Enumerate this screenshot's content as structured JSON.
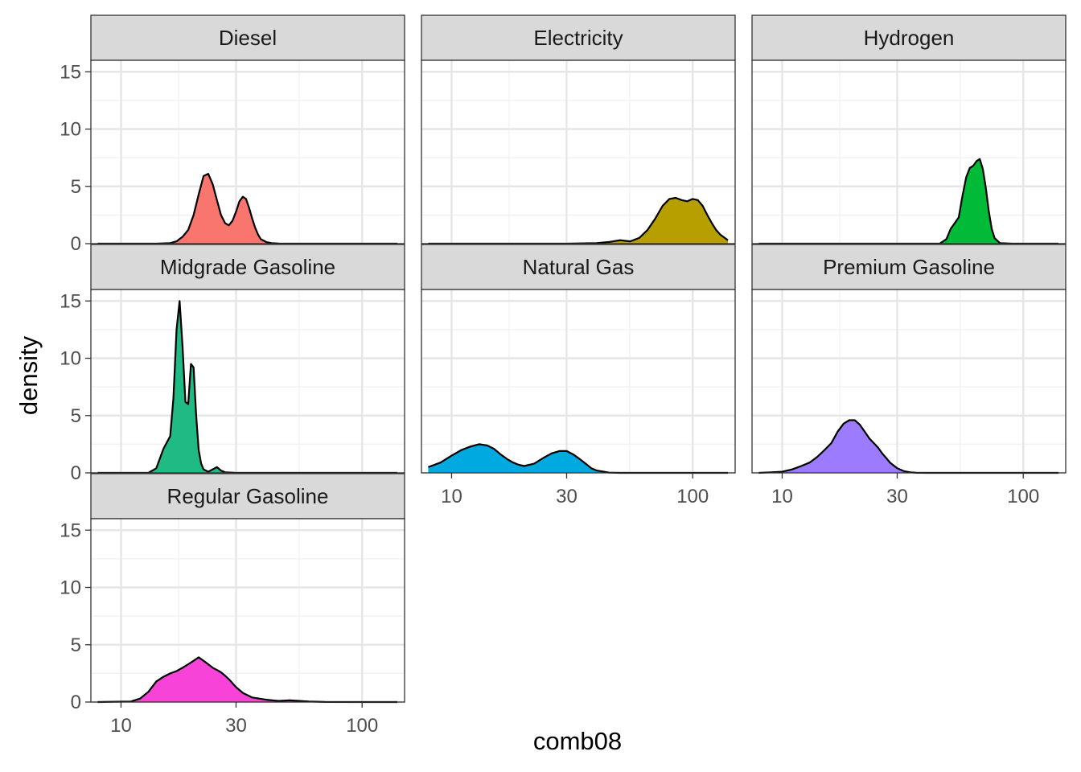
{
  "chart_data": {
    "type": "area",
    "facet_layout": "3 columns x 3 rows, free order left-to-right, top-to-bottom",
    "xlabel": "comb08",
    "ylabel": "density",
    "x_scale": "log10",
    "xlim": [
      7.5,
      150
    ],
    "ylim": [
      0,
      16
    ],
    "x_ticks": [
      10,
      30,
      100
    ],
    "x_tick_labels": [
      "10",
      "30",
      "100"
    ],
    "y_ticks": [
      0,
      5,
      10,
      15
    ],
    "y_tick_labels": [
      "0",
      "5",
      "10",
      "15"
    ],
    "grid": true,
    "legend": "none",
    "series": [
      {
        "name": "Diesel",
        "color": "#F8766D",
        "x": [
          8,
          14,
          16,
          17,
          18,
          19,
          20,
          21,
          22,
          23,
          24,
          25,
          26,
          27,
          28,
          29,
          30,
          31,
          32,
          33,
          34,
          35,
          36,
          37,
          38,
          40,
          42,
          45,
          50,
          100,
          140
        ],
        "y": [
          0,
          0,
          0.05,
          0.2,
          0.6,
          1.2,
          2.5,
          4.3,
          5.9,
          6.1,
          5.2,
          3.8,
          2.5,
          1.8,
          1.6,
          2.0,
          2.8,
          3.7,
          4.1,
          3.9,
          3.1,
          2.2,
          1.4,
          0.8,
          0.4,
          0.15,
          0.05,
          0.01,
          0,
          0,
          0
        ]
      },
      {
        "name": "Electricity",
        "color": "#B79F00",
        "x": [
          8,
          30,
          40,
          45,
          50,
          55,
          60,
          65,
          70,
          75,
          80,
          85,
          90,
          95,
          100,
          105,
          110,
          115,
          120,
          125,
          130,
          140
        ],
        "y": [
          0,
          0,
          0.05,
          0.15,
          0.3,
          0.2,
          0.5,
          1.2,
          2.2,
          3.3,
          3.9,
          4.0,
          3.8,
          3.7,
          3.9,
          3.8,
          3.3,
          2.5,
          1.8,
          1.2,
          0.8,
          0.3
        ]
      },
      {
        "name": "Hydrogen",
        "color": "#00BA38",
        "x": [
          8,
          45,
          48,
          50,
          52,
          54,
          56,
          58,
          60,
          62,
          64,
          66,
          68,
          70,
          72,
          74,
          76,
          80,
          90,
          140
        ],
        "y": [
          0,
          0,
          0.4,
          1.3,
          1.8,
          2.3,
          4.2,
          5.8,
          6.6,
          6.8,
          7.2,
          7.4,
          6.5,
          4.8,
          2.8,
          1.3,
          0.5,
          0.05,
          0,
          0
        ]
      },
      {
        "name": "Midgrade Gasoline",
        "color": "#20BA85",
        "x": [
          8,
          13,
          14,
          15,
          16,
          16.5,
          17,
          17.5,
          18,
          18.5,
          19,
          19.5,
          20,
          20.5,
          21,
          21.5,
          22,
          23,
          24,
          25,
          26,
          27,
          30,
          140
        ],
        "y": [
          0,
          0,
          0.4,
          2.1,
          3.2,
          6.5,
          12.5,
          15.0,
          11.0,
          6.2,
          6.0,
          9.5,
          9.2,
          5.0,
          2.0,
          0.8,
          0.3,
          0.1,
          0.3,
          0.5,
          0.2,
          0.05,
          0,
          0
        ]
      },
      {
        "name": "Natural Gas",
        "color": "#00A9E0",
        "x": [
          8,
          9,
          10,
          11,
          12,
          13,
          14,
          15,
          16,
          17,
          18,
          19,
          20,
          22,
          24,
          26,
          28,
          30,
          32,
          34,
          36,
          38,
          40,
          45,
          50,
          140
        ],
        "y": [
          0.5,
          0.9,
          1.5,
          2.0,
          2.3,
          2.5,
          2.4,
          2.1,
          1.6,
          1.2,
          0.9,
          0.7,
          0.6,
          0.8,
          1.3,
          1.7,
          1.9,
          1.9,
          1.6,
          1.2,
          0.8,
          0.4,
          0.2,
          0.02,
          0,
          0
        ]
      },
      {
        "name": "Premium Gasoline",
        "color": "#9C7BFF",
        "x": [
          8,
          9,
          10,
          11,
          12,
          13,
          14,
          15,
          16,
          17,
          18,
          19,
          20,
          21,
          22,
          23,
          24,
          25,
          26,
          27,
          28,
          30,
          32,
          34,
          36,
          40,
          140
        ],
        "y": [
          0,
          0.05,
          0.1,
          0.3,
          0.6,
          0.9,
          1.4,
          2.0,
          2.6,
          3.6,
          4.3,
          4.6,
          4.6,
          4.2,
          3.6,
          3.0,
          2.6,
          2.2,
          1.7,
          1.3,
          0.9,
          0.4,
          0.15,
          0.05,
          0.01,
          0,
          0
        ]
      },
      {
        "name": "Regular Gasoline",
        "color": "#F843D9",
        "x": [
          8,
          11,
          12,
          13,
          14,
          15,
          16,
          17,
          18,
          19,
          20,
          21,
          22,
          23,
          24,
          25,
          26,
          27,
          28,
          30,
          32,
          35,
          40,
          45,
          50,
          55,
          60,
          70,
          140
        ],
        "y": [
          0,
          0.05,
          0.3,
          0.9,
          1.8,
          2.2,
          2.5,
          2.7,
          3.0,
          3.3,
          3.6,
          3.9,
          3.6,
          3.3,
          3.0,
          2.8,
          2.6,
          2.3,
          2.0,
          1.3,
          0.8,
          0.4,
          0.2,
          0.1,
          0.15,
          0.1,
          0.05,
          0.01,
          0
        ]
      }
    ]
  }
}
